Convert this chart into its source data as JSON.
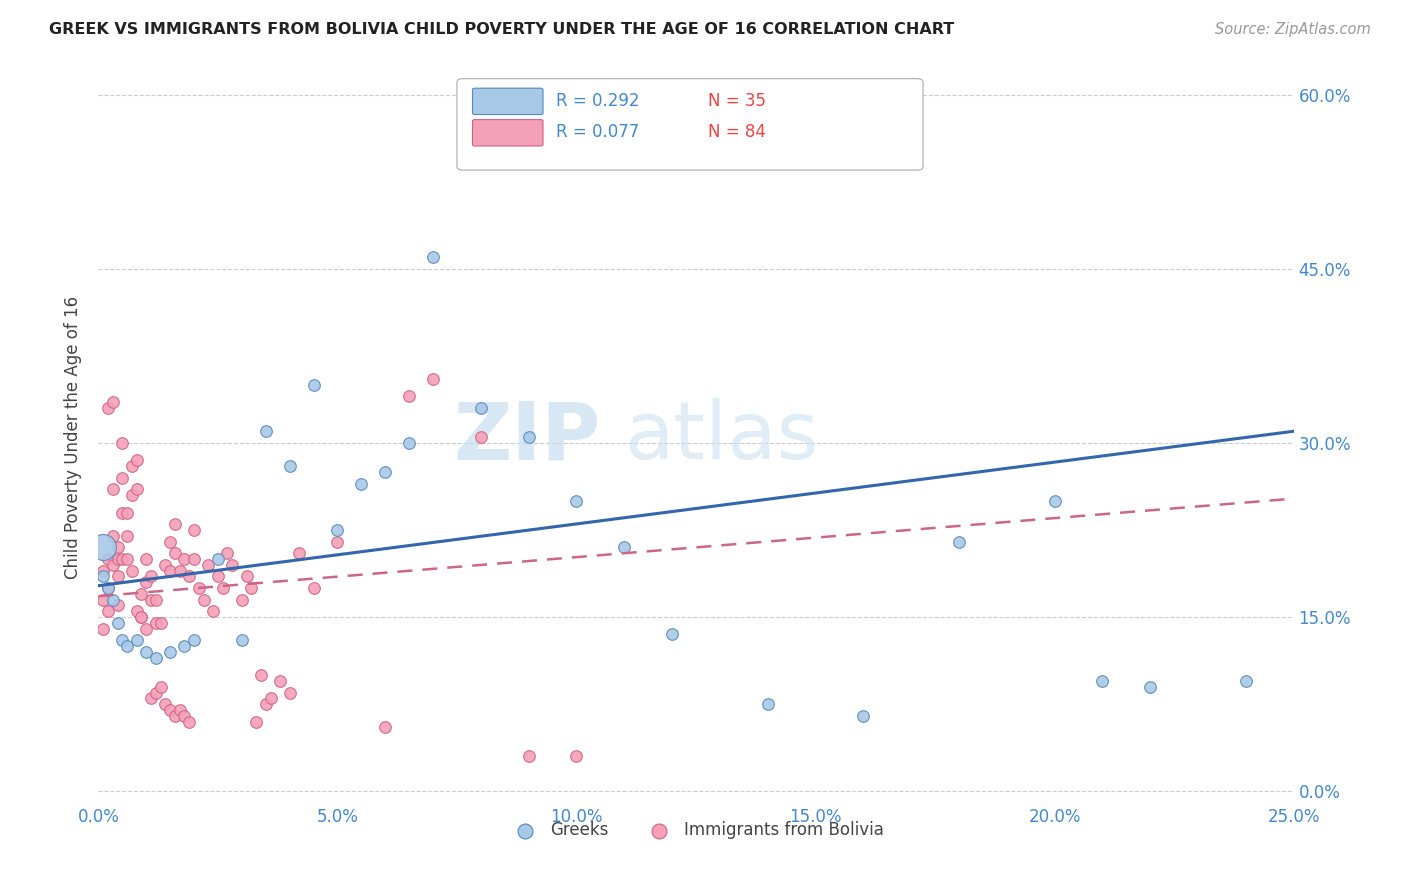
{
  "title": "GREEK VS IMMIGRANTS FROM BOLIVIA CHILD POVERTY UNDER THE AGE OF 16 CORRELATION CHART",
  "source": "Source: ZipAtlas.com",
  "xlabel_ticks": [
    "0.0%",
    "",
    "5.0%",
    "",
    "10.0%",
    "",
    "15.0%",
    "",
    "20.0%",
    "",
    "25.0%"
  ],
  "ylabel_ticks_right": [
    "0.0%",
    "15.0%",
    "30.0%",
    "45.0%",
    "60.0%"
  ],
  "xlim": [
    0.0,
    0.25
  ],
  "ylim": [
    -0.01,
    0.62
  ],
  "ylabel": "Child Poverty Under the Age of 16",
  "legend_r_greek": "R = 0.292",
  "legend_n_greek": "N = 35",
  "legend_r_bolivia": "R = 0.077",
  "legend_n_bolivia": "N = 84",
  "color_greek_fill": "#a8c8e8",
  "color_greek_edge": "#5588bb",
  "color_bolivia_fill": "#f4a0b8",
  "color_bolivia_edge": "#d06080",
  "color_greek_line": "#3366aa",
  "color_bolivia_line": "#cc6688",
  "watermark_zip": "ZIP",
  "watermark_atlas": "atlas",
  "greeks_x": [
    0.001,
    0.002,
    0.003,
    0.004,
    0.005,
    0.006,
    0.008,
    0.01,
    0.012,
    0.015,
    0.018,
    0.02,
    0.025,
    0.03,
    0.035,
    0.04,
    0.045,
    0.05,
    0.055,
    0.06,
    0.065,
    0.07,
    0.08,
    0.09,
    0.1,
    0.11,
    0.12,
    0.14,
    0.16,
    0.18,
    0.2,
    0.21,
    0.22,
    0.24,
    0.001
  ],
  "greeks_y": [
    0.185,
    0.175,
    0.165,
    0.145,
    0.13,
    0.125,
    0.13,
    0.12,
    0.115,
    0.12,
    0.125,
    0.13,
    0.2,
    0.13,
    0.31,
    0.28,
    0.35,
    0.225,
    0.265,
    0.275,
    0.3,
    0.46,
    0.33,
    0.305,
    0.25,
    0.21,
    0.135,
    0.075,
    0.065,
    0.215,
    0.25,
    0.095,
    0.09,
    0.095,
    0.21
  ],
  "greeks_size_big": [
    0,
    0,
    0,
    0,
    0,
    0,
    0,
    0,
    0,
    0,
    0,
    0,
    0,
    0,
    0,
    0,
    0,
    0,
    0,
    0,
    0,
    0,
    0,
    0,
    0,
    0,
    0,
    0,
    0,
    0,
    0,
    0,
    0,
    0,
    1
  ],
  "bolivia_x": [
    0.001,
    0.001,
    0.001,
    0.002,
    0.002,
    0.002,
    0.003,
    0.003,
    0.003,
    0.004,
    0.004,
    0.004,
    0.005,
    0.005,
    0.005,
    0.006,
    0.006,
    0.007,
    0.007,
    0.008,
    0.008,
    0.009,
    0.009,
    0.01,
    0.01,
    0.011,
    0.011,
    0.012,
    0.012,
    0.013,
    0.014,
    0.015,
    0.015,
    0.016,
    0.016,
    0.017,
    0.018,
    0.019,
    0.02,
    0.02,
    0.021,
    0.022,
    0.023,
    0.024,
    0.025,
    0.026,
    0.027,
    0.028,
    0.03,
    0.031,
    0.032,
    0.033,
    0.034,
    0.035,
    0.036,
    0.038,
    0.04,
    0.042,
    0.045,
    0.05,
    0.06,
    0.065,
    0.07,
    0.08,
    0.09,
    0.1,
    0.002,
    0.003,
    0.004,
    0.005,
    0.006,
    0.007,
    0.008,
    0.009,
    0.01,
    0.011,
    0.012,
    0.013,
    0.014,
    0.015,
    0.016,
    0.017,
    0.018,
    0.019
  ],
  "bolivia_y": [
    0.19,
    0.165,
    0.14,
    0.2,
    0.175,
    0.155,
    0.26,
    0.22,
    0.195,
    0.21,
    0.185,
    0.16,
    0.3,
    0.27,
    0.24,
    0.24,
    0.22,
    0.28,
    0.255,
    0.285,
    0.26,
    0.17,
    0.15,
    0.2,
    0.18,
    0.185,
    0.165,
    0.165,
    0.145,
    0.145,
    0.195,
    0.215,
    0.19,
    0.23,
    0.205,
    0.19,
    0.2,
    0.185,
    0.225,
    0.2,
    0.175,
    0.165,
    0.195,
    0.155,
    0.185,
    0.175,
    0.205,
    0.195,
    0.165,
    0.185,
    0.175,
    0.06,
    0.1,
    0.075,
    0.08,
    0.095,
    0.085,
    0.205,
    0.175,
    0.215,
    0.055,
    0.34,
    0.355,
    0.305,
    0.03,
    0.03,
    0.33,
    0.335,
    0.2,
    0.2,
    0.2,
    0.19,
    0.155,
    0.15,
    0.14,
    0.08,
    0.085,
    0.09,
    0.075,
    0.07,
    0.065,
    0.07,
    0.065,
    0.06
  ],
  "greek_trend": [
    0.177,
    0.31
  ],
  "bolivia_trend": [
    0.168,
    0.252
  ],
  "trend_x": [
    0.0,
    0.25
  ]
}
